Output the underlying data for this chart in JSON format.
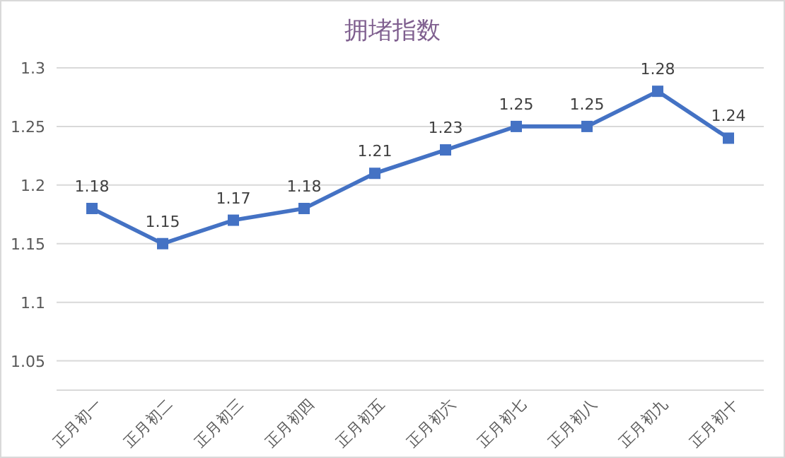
{
  "chart_data": {
    "type": "line",
    "title": "拥堵指数",
    "categories": [
      "正月初一",
      "正月初二",
      "正月初三",
      "正月初四",
      "正月初五",
      "正月初六",
      "正月初七",
      "正月初八",
      "正月初九",
      "正月初十"
    ],
    "values": [
      1.18,
      1.15,
      1.17,
      1.18,
      1.21,
      1.23,
      1.25,
      1.25,
      1.28,
      1.24
    ],
    "color": "#4472c4",
    "ylim": [
      1.025,
      1.3
    ],
    "yticks": [
      1.05,
      1.1,
      1.15,
      1.2,
      1.25,
      1.3
    ],
    "grid": "y",
    "marker": "square",
    "line_style": "solid",
    "data_labels": true
  }
}
